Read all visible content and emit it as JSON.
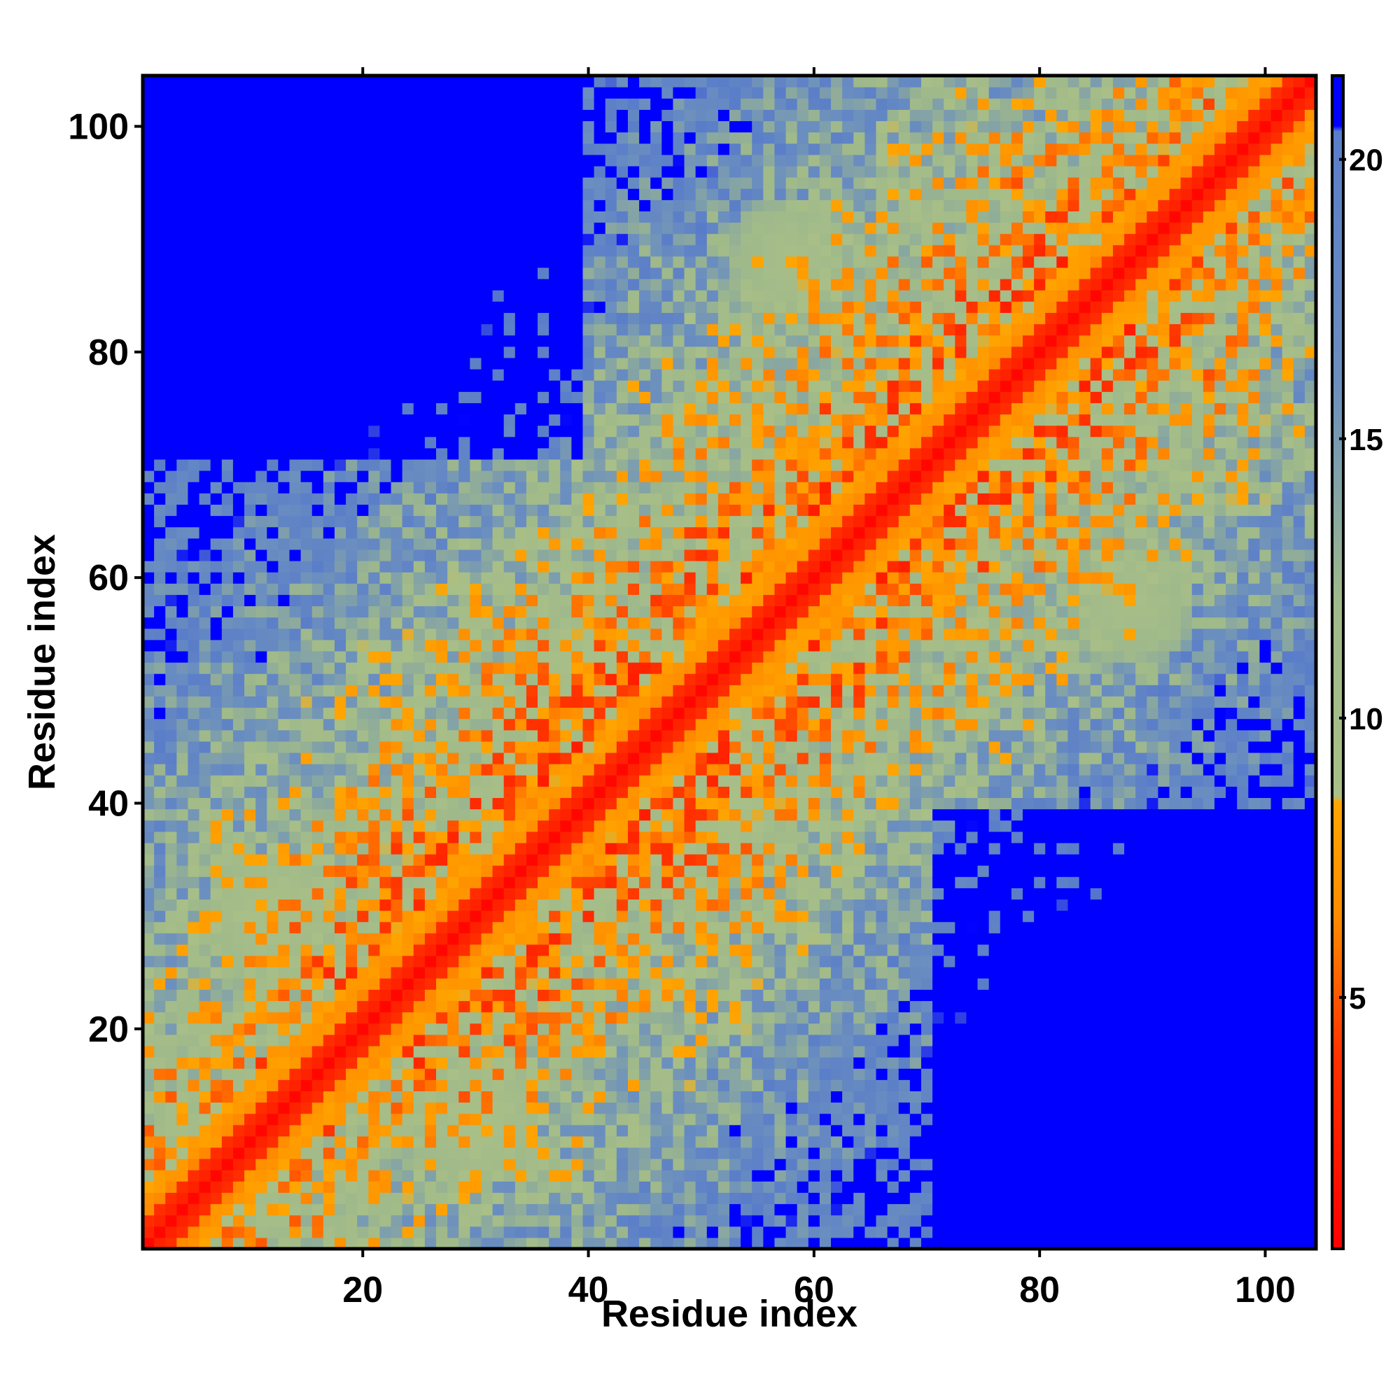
{
  "chart_data": {
    "type": "heatmap",
    "title": "",
    "xlabel": "Residue index",
    "ylabel": "Residue index",
    "xlim": [
      1,
      104
    ],
    "ylim": [
      1,
      104
    ],
    "x_ticks": [
      20,
      40,
      60,
      80,
      100
    ],
    "y_ticks": [
      20,
      40,
      60,
      80,
      100
    ],
    "x_tick_labels": [
      "20",
      "40",
      "60",
      "80",
      "100"
    ],
    "y_tick_labels": [
      "20",
      "40",
      "60",
      "80",
      "100"
    ],
    "n_residues": 104,
    "colorbar": {
      "min": 0.5,
      "max": 21.5,
      "ticks": [
        5,
        10,
        15,
        20
      ],
      "tick_labels": [
        "5",
        "10",
        "15",
        "20"
      ],
      "stops": [
        {
          "value": 0.5,
          "color": "#ff0000"
        },
        {
          "value": 4.0,
          "color": "#ff3300"
        },
        {
          "value": 6.5,
          "color": "#ff8c00"
        },
        {
          "value": 8.5,
          "color": "#ffa500"
        },
        {
          "value": 8.6,
          "color": "#a9bf87"
        },
        {
          "value": 12.0,
          "color": "#9fb98a"
        },
        {
          "value": 16.0,
          "color": "#6b8fbf"
        },
        {
          "value": 20.5,
          "color": "#5a7dc9"
        },
        {
          "value": 20.6,
          "color": "#0000ff"
        },
        {
          "value": 21.5,
          "color": "#0000ff"
        }
      ]
    },
    "matrix_model": {
      "description_values": "symmetric residue distance map; values by |i-j| with secondary contacts",
      "diagonal_value": 1,
      "saturation_value": 21.5,
      "contact_bands": [
        {
          "center": [
            35,
            40
          ],
          "value": 6
        },
        {
          "center": [
            40,
            35
          ],
          "value": 6
        },
        {
          "center": [
            70,
            68
          ],
          "value": 6
        },
        {
          "center": [
            68,
            70
          ],
          "value": 6
        },
        {
          "center": [
            52,
            40
          ],
          "value": 7
        },
        {
          "center": [
            40,
            52
          ],
          "value": 7
        },
        {
          "center": [
            12,
            30
          ],
          "value": 7
        },
        {
          "center": [
            30,
            12
          ],
          "value": 7
        },
        {
          "center": [
            88,
            58
          ],
          "value": 8
        },
        {
          "center": [
            58,
            88
          ],
          "value": 8
        }
      ]
    }
  }
}
